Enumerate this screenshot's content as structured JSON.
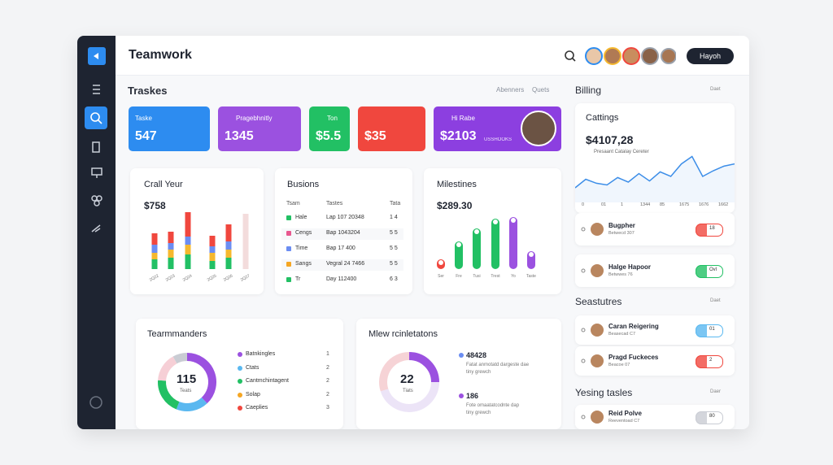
{
  "header": {
    "title": "Teamwork",
    "button": "Hayoh"
  },
  "tasks": {
    "title": "Traskes",
    "filters": [
      "Abenners",
      "Quets"
    ]
  },
  "stats": [
    {
      "label": "Taske",
      "value": "547",
      "color": "#2d8cf0"
    },
    {
      "label": "Pragebhnitly",
      "value": "1345",
      "color": "#9b51e0"
    },
    {
      "label": "Ton",
      "value": "$5.5",
      "color": "#22c064"
    },
    {
      "value": "$35",
      "color": "#f0473e"
    },
    {
      "label": "Hi Rabe",
      "value": "$2103",
      "note": "USSHOOKS",
      "color": "#8c3fe0"
    }
  ],
  "crall": {
    "title": "Crall Yeur",
    "amount": "$758",
    "categories": [
      "2Q22",
      "2Q23",
      "2Q24",
      "2Q25",
      "2Q26",
      "2Q27"
    ],
    "series": [
      {
        "color": "#22c064",
        "values": [
          12,
          14,
          18,
          10,
          14,
          null
        ]
      },
      {
        "color": "#f5b82e",
        "values": [
          8,
          10,
          12,
          10,
          10,
          null
        ]
      },
      {
        "color": "#6b8df2",
        "values": [
          10,
          8,
          10,
          8,
          10,
          null
        ]
      },
      {
        "color": "#f0473e",
        "values": [
          14,
          14,
          30,
          13,
          21,
          null
        ]
      },
      {
        "color": "#f3dcdc",
        "values": [
          null,
          null,
          null,
          null,
          null,
          68
        ]
      }
    ]
  },
  "business": {
    "title": "Busions",
    "columns": [
      "Tsam",
      "Tastes",
      "Tata"
    ],
    "rows": [
      {
        "color": "#22c064",
        "cells": [
          "Hale",
          "Lap 107 20348",
          "1 4"
        ]
      },
      {
        "color": "#e8588f",
        "cells": [
          "Cengs",
          "Bap 1043204",
          "5 5"
        ]
      },
      {
        "color": "#6b8df2",
        "cells": [
          "Time",
          "Bap 17 400",
          "5 5"
        ]
      },
      {
        "color": "#f5a623",
        "cells": [
          "Sangs",
          "Vegral 24 7466",
          "5 5"
        ]
      },
      {
        "color": "#22c064",
        "cells": [
          "Tr",
          "Day 112400",
          "6 3"
        ]
      }
    ]
  },
  "milestones": {
    "title": "Milestines",
    "amount": "$289.30",
    "categories": [
      "Ser",
      "Fre",
      "Tusi",
      "Trest",
      "Yo",
      "Taste"
    ],
    "values": [
      12,
      34,
      50,
      62,
      64,
      22
    ],
    "colors": [
      "#f0473e",
      "#22c064",
      "#22c064",
      "#22c064",
      "#9b51e0",
      "#9b51e0"
    ]
  },
  "team": {
    "title": "Tearmmanders",
    "center_value": "115",
    "center_label": "Teats",
    "segments": [
      38,
      18,
      20,
      16,
      8
    ],
    "segment_colors": [
      "#9b51e0",
      "#5ab8f0",
      "#22c064",
      "#f6cfd6",
      "#c9ccd3"
    ],
    "legend": [
      {
        "label": "Batnkingles",
        "count": "1",
        "color": "#9b51e0"
      },
      {
        "label": "Ctats",
        "count": "2",
        "color": "#5ab8f0"
      },
      {
        "label": "Cantmchintagent",
        "count": "2",
        "color": "#22c064"
      },
      {
        "label": "Solap",
        "count": "2",
        "color": "#f5a623"
      },
      {
        "label": "Caeplies",
        "count": "3",
        "color": "#f0473e"
      }
    ]
  },
  "relations": {
    "title": "Mlew rcinletatons",
    "center_value": "22",
    "center_label": "Tiats",
    "segments": [
      25,
      45,
      30
    ],
    "segment_colors": [
      "#9b51e0",
      "#ece4f7",
      "#f6d3d6"
    ],
    "items": [
      {
        "value": "48428",
        "lines": [
          "Fatat anmotatd dargeste dae",
          "tiny grewch"
        ],
        "color": "#6b8df2"
      },
      {
        "value": "186",
        "lines": [
          "Fote omaatatcodnte dap",
          "tiny grewch"
        ],
        "color": "#9b51e0"
      }
    ]
  },
  "billing": {
    "title": "Billing",
    "filter": "Daet",
    "card": {
      "title": "Cattings",
      "amount": "$4107,28",
      "note": "Presaant Catalay Cereter",
      "values": [
        20,
        35,
        28,
        25,
        38,
        30,
        45,
        32,
        48,
        40,
        62,
        75,
        40,
        50,
        58,
        62
      ],
      "x_labels": [
        "0",
        "01",
        "1",
        "1344",
        "85",
        "1675",
        "1676",
        "1662"
      ],
      "color": "#3d8ee8"
    },
    "items": [
      {
        "name": "Bugpher",
        "sub": "Betwecd 307",
        "badge": "18",
        "badge_color": "#f0473e"
      },
      {
        "name": "Halge Hapoor",
        "sub": "Betwwes 76",
        "badge": "Ovl",
        "badge_color": "#22c064"
      }
    ]
  },
  "seasons": {
    "title": "Seastutres",
    "filter": "Daet",
    "items": [
      {
        "name": "Caran Reigering",
        "sub": "Beasecad C7",
        "badge": "01",
        "badge_color": "#5ab8f0"
      },
      {
        "name": "Pragd Fuckeces",
        "sub": "Beacoe 07",
        "badge": "2",
        "badge_color": "#f0473e"
      }
    ]
  },
  "yesing": {
    "title": "Yesing tasles",
    "filter": "Daer",
    "items": [
      {
        "name": "Reid Polve",
        "sub": "Reeventoad C7",
        "badge": "80",
        "badge_color": "#c9ccd3"
      }
    ]
  }
}
